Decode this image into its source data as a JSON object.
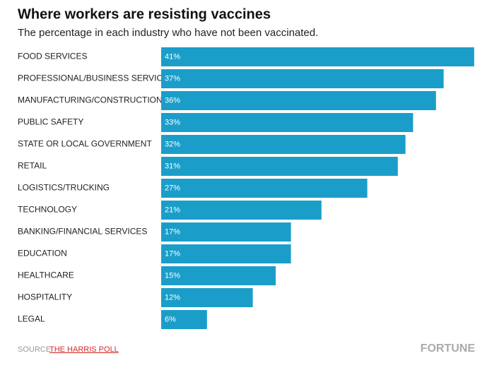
{
  "chart_data": {
    "type": "bar",
    "orientation": "horizontal",
    "title": "Where workers are resisting vaccines",
    "subtitle": "The percentage in each industry who have not been vaccinated.",
    "categories": [
      "FOOD SERVICES",
      "PROFESSIONAL/BUSINESS SERVICES",
      "MANUFACTURING/CONSTRUCTION",
      "PUBLIC SAFETY",
      "STATE OR LOCAL GOVERNMENT",
      "RETAIL",
      "LOGISTICS/TRUCKING",
      "TECHNOLOGY",
      "BANKING/FINANCIAL SERVICES",
      "EDUCATION",
      "HEALTHCARE",
      "HOSPITALITY",
      "LEGAL"
    ],
    "values": [
      41,
      37,
      36,
      33,
      32,
      31,
      27,
      21,
      17,
      17,
      15,
      12,
      6
    ],
    "value_labels": [
      "41%",
      "37%",
      "36%",
      "33%",
      "32%",
      "31%",
      "27%",
      "21%",
      "17%",
      "17%",
      "15%",
      "12%",
      "6%"
    ],
    "color": "#1a9ec9",
    "source_label": "SOURCE:",
    "source": "THE HARRIS POLL",
    "brand": "FORTUNE"
  }
}
